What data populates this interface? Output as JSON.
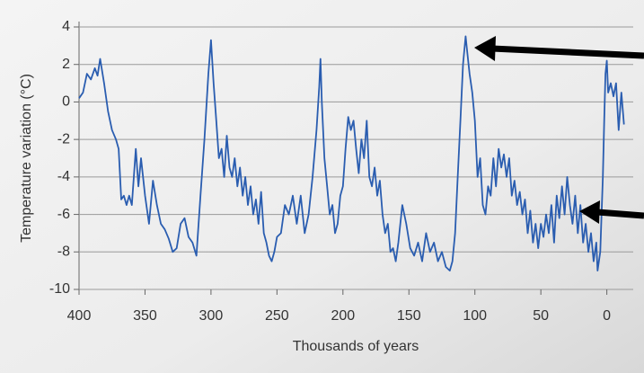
{
  "chart_data": {
    "type": "line",
    "y_label": "Temperature variation (°C)",
    "x_label": "Thousands of years",
    "color": "#2a5db0",
    "xlim": [
      400,
      -20
    ],
    "xticks": [
      400,
      350,
      300,
      250,
      200,
      150,
      100,
      50,
      0
    ],
    "ylim": [
      -10,
      4
    ],
    "yticks": [
      4,
      2,
      0,
      -2,
      -4,
      -6,
      -8,
      -10
    ],
    "grid": true,
    "x": [
      400,
      397,
      394,
      391,
      388,
      386,
      384,
      381,
      378,
      375,
      372,
      370,
      368,
      366,
      364,
      362,
      360,
      357,
      355,
      353,
      350,
      347,
      344,
      341,
      338,
      335,
      332,
      329,
      326,
      323,
      320,
      317,
      314,
      311,
      308,
      305,
      302,
      300,
      298,
      296,
      294,
      292,
      290,
      288,
      286,
      284,
      282,
      280,
      278,
      276,
      274,
      272,
      270,
      268,
      266,
      264,
      262,
      260,
      258,
      256,
      254,
      252,
      250,
      247,
      244,
      241,
      238,
      235,
      232,
      229,
      226,
      223,
      220,
      218,
      217,
      216,
      214,
      212,
      210,
      208,
      206,
      204,
      202,
      200,
      198,
      196,
      194,
      192,
      190,
      188,
      186,
      184,
      182,
      180,
      178,
      176,
      174,
      172,
      170,
      168,
      166,
      164,
      162,
      160,
      158,
      155,
      152,
      149,
      146,
      143,
      140,
      137,
      134,
      131,
      128,
      125,
      122,
      119,
      117,
      115,
      113,
      111,
      109,
      107,
      106,
      104,
      102,
      100,
      98,
      96,
      94,
      92,
      90,
      88,
      86,
      84,
      82,
      80,
      78,
      76,
      74,
      72,
      70,
      68,
      66,
      64,
      62,
      60,
      58,
      56,
      54,
      52,
      50,
      48,
      46,
      44,
      42,
      40,
      38,
      36,
      34,
      32,
      30,
      28,
      26,
      24,
      22,
      20,
      18,
      16,
      14,
      12,
      10,
      8,
      7,
      5,
      3,
      2,
      1,
      0,
      -1,
      -3,
      -5,
      -7,
      -9,
      -11,
      -13
    ],
    "values": [
      0.2,
      0.5,
      1.5,
      1.2,
      1.8,
      1.4,
      2.3,
      1.0,
      -0.5,
      -1.5,
      -2.0,
      -2.5,
      -5.2,
      -5.0,
      -5.5,
      -5.0,
      -5.5,
      -2.5,
      -4.5,
      -3.0,
      -5.0,
      -6.5,
      -4.2,
      -5.5,
      -6.5,
      -6.8,
      -7.3,
      -8.0,
      -7.8,
      -6.5,
      -6.2,
      -7.2,
      -7.5,
      -8.2,
      -5.0,
      -2.0,
      1.5,
      3.3,
      1.0,
      -1.0,
      -3.0,
      -2.5,
      -4.0,
      -1.8,
      -3.5,
      -4.0,
      -3.0,
      -4.5,
      -3.5,
      -5.0,
      -4.0,
      -5.5,
      -4.5,
      -6.0,
      -5.2,
      -6.5,
      -4.8,
      -7.0,
      -7.5,
      -8.2,
      -8.5,
      -8.0,
      -7.2,
      -7.0,
      -5.5,
      -6.0,
      -5.0,
      -6.5,
      -5.0,
      -7.0,
      -6.0,
      -4.0,
      -1.5,
      0.8,
      2.3,
      0.0,
      -3.0,
      -4.5,
      -6.0,
      -5.5,
      -7.0,
      -6.5,
      -5.0,
      -4.5,
      -2.5,
      -0.8,
      -1.5,
      -1.0,
      -2.5,
      -3.8,
      -2.0,
      -3.0,
      -1.0,
      -4.0,
      -4.5,
      -3.5,
      -5.0,
      -4.2,
      -6.0,
      -7.0,
      -6.5,
      -8.0,
      -7.8,
      -8.5,
      -7.5,
      -5.5,
      -6.5,
      -7.8,
      -8.2,
      -7.5,
      -8.5,
      -7.0,
      -8.0,
      -7.5,
      -8.5,
      -8.0,
      -8.8,
      -9.0,
      -8.5,
      -7.0,
      -4.0,
      -1.0,
      2.0,
      3.5,
      2.8,
      1.5,
      0.5,
      -1.0,
      -4.0,
      -3.0,
      -5.5,
      -6.0,
      -4.5,
      -5.0,
      -3.0,
      -4.5,
      -2.5,
      -3.5,
      -2.8,
      -4.0,
      -3.0,
      -5.0,
      -4.2,
      -5.5,
      -4.8,
      -6.0,
      -5.2,
      -7.0,
      -5.8,
      -7.5,
      -6.5,
      -7.8,
      -6.5,
      -7.2,
      -6.0,
      -7.0,
      -5.5,
      -7.5,
      -5.0,
      -6.2,
      -4.5,
      -6.0,
      -4.0,
      -5.5,
      -6.5,
      -5.0,
      -7.0,
      -5.5,
      -7.5,
      -6.5,
      -8.0,
      -7.0,
      -8.5,
      -7.5,
      -9.0,
      -8.0,
      -4.0,
      -1.0,
      1.5,
      2.2,
      0.5,
      1.0,
      0.3,
      1.0,
      -1.5,
      0.5,
      -1.2
    ]
  }
}
